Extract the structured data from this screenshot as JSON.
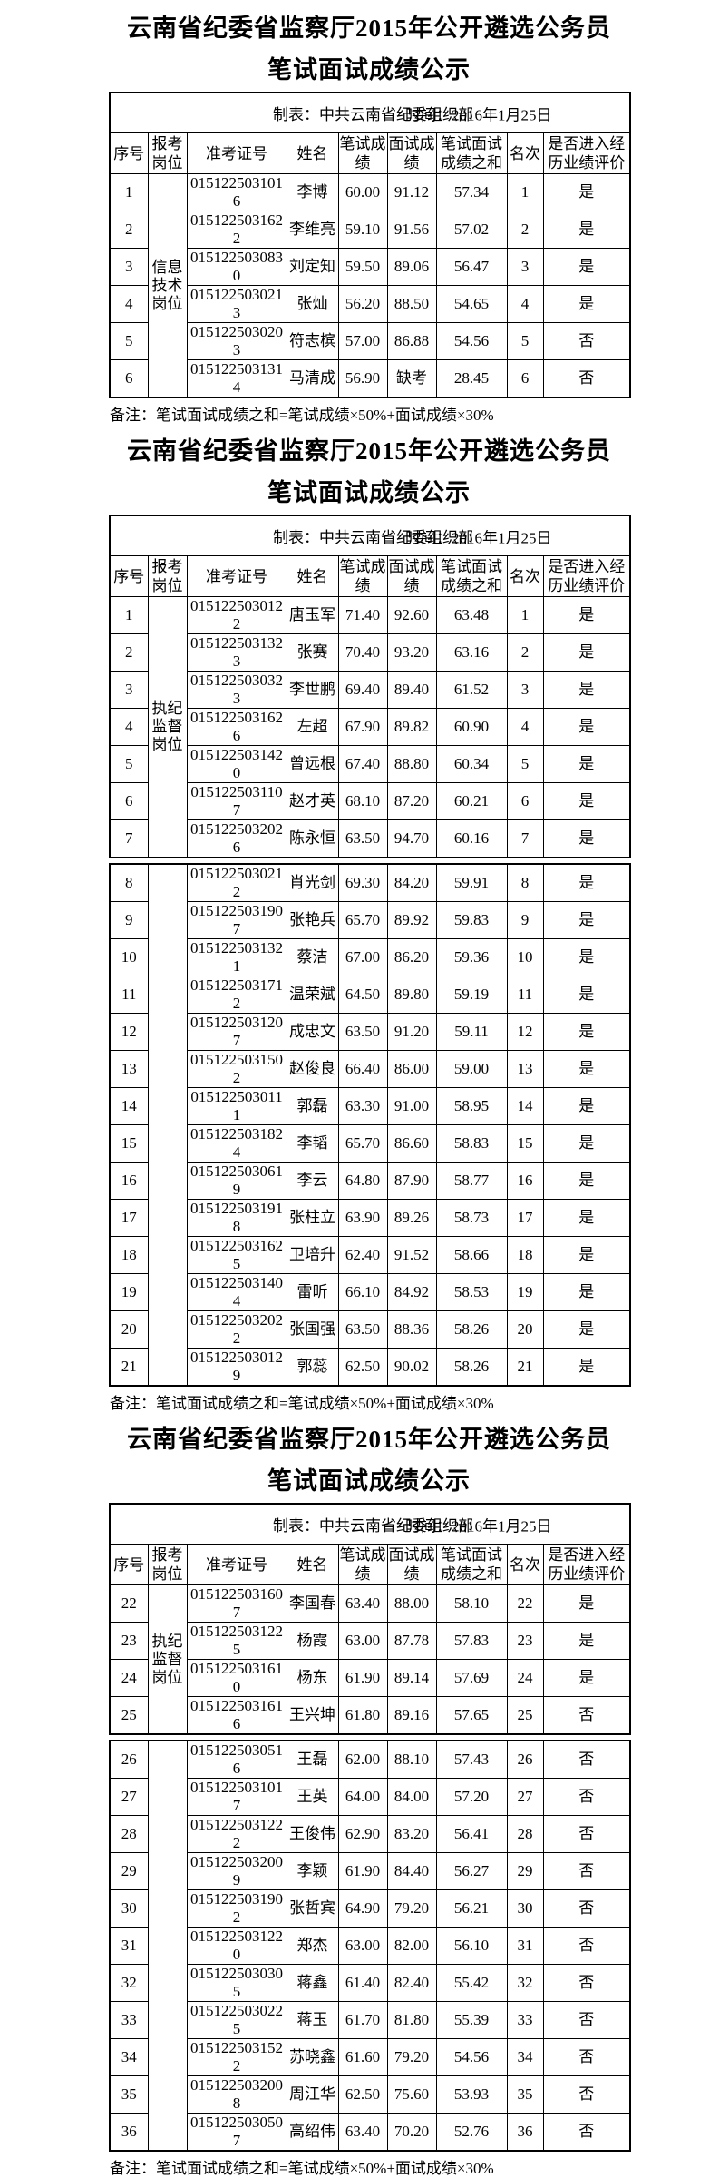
{
  "sections": [
    {
      "title_line1": "云南省纪委省监察厅2015年公开遴选公务员",
      "title_line2": "笔试面试成绩公示",
      "maker": "制表：中共云南省纪委组织部",
      "time": "时间：2016年1月25日",
      "columns": [
        "序号",
        "报考岗位",
        "准考证号",
        "姓名",
        "笔试成绩",
        "面试成绩",
        "笔试面试成绩之和",
        "名次",
        "是否进入经历业绩评价"
      ],
      "note": "备注：笔试面试成绩之和=笔试成绩×50%+面试成绩×30%",
      "blocks": [
        {
          "position": "信息技术岗位",
          "rows": [
            [
              "1",
              "0151225031016",
              "李博",
              "60.00",
              "91.12",
              "57.34",
              "1",
              "是"
            ],
            [
              "2",
              "0151225031622",
              "李维亮",
              "59.10",
              "91.56",
              "57.02",
              "2",
              "是"
            ],
            [
              "3",
              "0151225030830",
              "刘定知",
              "59.50",
              "89.06",
              "56.47",
              "3",
              "是"
            ],
            [
              "4",
              "0151225030213",
              "张灿",
              "56.20",
              "88.50",
              "54.65",
              "4",
              "是"
            ],
            [
              "5",
              "0151225030203",
              "符志槟",
              "57.00",
              "86.88",
              "54.56",
              "5",
              "否"
            ],
            [
              "6",
              "0151225031314",
              "马清成",
              "56.90",
              "缺考",
              "28.45",
              "6",
              "否"
            ]
          ]
        }
      ]
    },
    {
      "title_line1": "云南省纪委省监察厅2015年公开遴选公务员",
      "title_line2": "笔试面试成绩公示",
      "maker": "制表：中共云南省纪委组织部",
      "time": "时间：2016年1月25日",
      "columns": [
        "序号",
        "报考岗位",
        "准考证号",
        "姓名",
        "笔试成绩",
        "面试成绩",
        "笔试面试成绩之和",
        "名次",
        "是否进入经历业绩评价"
      ],
      "note": "备注：笔试面试成绩之和=笔试成绩×50%+面试成绩×30%",
      "blocks": [
        {
          "position": "执纪监督岗位",
          "rows": [
            [
              "1",
              "0151225030122",
              "唐玉军",
              "71.40",
              "92.60",
              "63.48",
              "1",
              "是"
            ],
            [
              "2",
              "0151225031323",
              "张赛",
              "70.40",
              "93.20",
              "63.16",
              "2",
              "是"
            ],
            [
              "3",
              "0151225030323",
              "李世鹏",
              "69.40",
              "89.40",
              "61.52",
              "3",
              "是"
            ],
            [
              "4",
              "0151225031626",
              "左超",
              "67.90",
              "89.82",
              "60.90",
              "4",
              "是"
            ],
            [
              "5",
              "0151225031420",
              "曾远根",
              "67.40",
              "88.80",
              "60.34",
              "5",
              "是"
            ],
            [
              "6",
              "0151225031107",
              "赵才英",
              "68.10",
              "87.20",
              "60.21",
              "6",
              "是"
            ],
            [
              "7",
              "0151225032026",
              "陈永恒",
              "63.50",
              "94.70",
              "60.16",
              "7",
              "是"
            ]
          ]
        },
        {
          "position": "",
          "rows": [
            [
              "8",
              "0151225030212",
              "肖光剑",
              "69.30",
              "84.20",
              "59.91",
              "8",
              "是"
            ],
            [
              "9",
              "0151225031907",
              "张艳兵",
              "65.70",
              "89.92",
              "59.83",
              "9",
              "是"
            ],
            [
              "10",
              "0151225031321",
              "蔡洁",
              "67.00",
              "86.20",
              "59.36",
              "10",
              "是"
            ],
            [
              "11",
              "0151225031712",
              "温荣斌",
              "64.50",
              "89.80",
              "59.19",
              "11",
              "是"
            ],
            [
              "12",
              "0151225031207",
              "成忠文",
              "63.50",
              "91.20",
              "59.11",
              "12",
              "是"
            ],
            [
              "13",
              "0151225031502",
              "赵俊良",
              "66.40",
              "86.00",
              "59.00",
              "13",
              "是"
            ],
            [
              "14",
              "0151225030111",
              "郭磊",
              "63.30",
              "91.00",
              "58.95",
              "14",
              "是"
            ],
            [
              "15",
              "0151225031824",
              "李韬",
              "65.70",
              "86.60",
              "58.83",
              "15",
              "是"
            ],
            [
              "16",
              "0151225030619",
              "李云",
              "64.80",
              "87.90",
              "58.77",
              "16",
              "是"
            ],
            [
              "17",
              "0151225031918",
              "张柱立",
              "63.90",
              "89.26",
              "58.73",
              "17",
              "是"
            ],
            [
              "18",
              "0151225031625",
              "卫培升",
              "62.40",
              "91.52",
              "58.66",
              "18",
              "是"
            ],
            [
              "19",
              "0151225031404",
              "雷昕",
              "66.10",
              "84.92",
              "58.53",
              "19",
              "是"
            ],
            [
              "20",
              "0151225032022",
              "张国强",
              "63.50",
              "88.36",
              "58.26",
              "20",
              "是"
            ],
            [
              "21",
              "0151225030129",
              "郭蕊",
              "62.50",
              "90.02",
              "58.26",
              "21",
              "是"
            ]
          ]
        }
      ]
    },
    {
      "title_line1": "云南省纪委省监察厅2015年公开遴选公务员",
      "title_line2": "笔试面试成绩公示",
      "maker": "制表：中共云南省纪委组织部",
      "time": "时间：2016年1月25日",
      "columns": [
        "序号",
        "报考岗位",
        "准考证号",
        "姓名",
        "笔试成绩",
        "面试成绩",
        "笔试面试成绩之和",
        "名次",
        "是否进入经历业绩评价"
      ],
      "note": "备注：笔试面试成绩之和=笔试成绩×50%+面试成绩×30%",
      "blocks": [
        {
          "position": "执纪监督岗位",
          "rows": [
            [
              "22",
              "0151225031607",
              "李国春",
              "63.40",
              "88.00",
              "58.10",
              "22",
              "是"
            ],
            [
              "23",
              "0151225031225",
              "杨霞",
              "63.00",
              "87.78",
              "57.83",
              "23",
              "是"
            ],
            [
              "24",
              "0151225031610",
              "杨东",
              "61.90",
              "89.14",
              "57.69",
              "24",
              "是"
            ],
            [
              "25",
              "0151225031616",
              "王兴坤",
              "61.80",
              "89.16",
              "57.65",
              "25",
              "否"
            ]
          ]
        },
        {
          "position": "",
          "rows": [
            [
              "26",
              "0151225030516",
              "王磊",
              "62.00",
              "88.10",
              "57.43",
              "26",
              "否"
            ],
            [
              "27",
              "0151225031017",
              "王英",
              "64.00",
              "84.00",
              "57.20",
              "27",
              "否"
            ],
            [
              "28",
              "0151225031222",
              "王俊伟",
              "62.90",
              "83.20",
              "56.41",
              "28",
              "否"
            ],
            [
              "29",
              "0151225032009",
              "李颖",
              "61.90",
              "84.40",
              "56.27",
              "29",
              "否"
            ],
            [
              "30",
              "0151225031902",
              "张哲宾",
              "64.90",
              "79.20",
              "56.21",
              "30",
              "否"
            ],
            [
              "31",
              "0151225031220",
              "郑杰",
              "63.00",
              "82.00",
              "56.10",
              "31",
              "否"
            ],
            [
              "32",
              "0151225030305",
              "蒋鑫",
              "61.40",
              "82.40",
              "55.42",
              "32",
              "否"
            ],
            [
              "33",
              "0151225030225",
              "蒋玉",
              "61.70",
              "81.80",
              "55.39",
              "33",
              "否"
            ],
            [
              "34",
              "0151225031522",
              "苏晓鑫",
              "61.60",
              "79.20",
              "54.56",
              "34",
              "否"
            ],
            [
              "35",
              "0151225032008",
              "周江华",
              "62.50",
              "75.60",
              "53.93",
              "35",
              "否"
            ],
            [
              "36",
              "0151225030507",
              "高绍伟",
              "63.40",
              "70.20",
              "52.76",
              "36",
              "否"
            ]
          ]
        }
      ]
    }
  ]
}
